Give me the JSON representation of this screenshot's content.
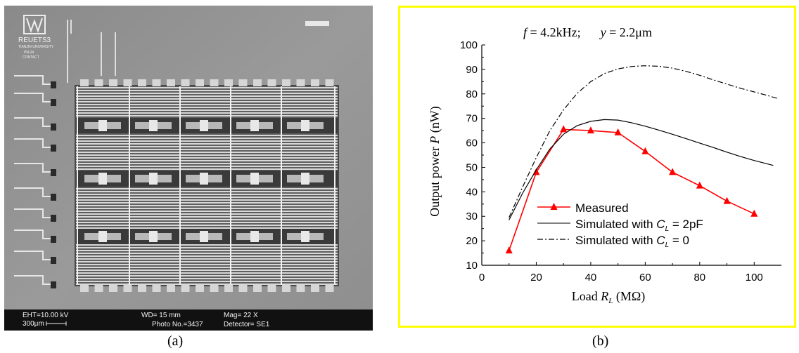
{
  "panel_a": {
    "caption": "(a)",
    "logo_text": [
      "REUETS3",
      "TIANJIN UNIVERSITY",
      "PN-24",
      "CONTACT"
    ],
    "info": {
      "eht": "EHT=10.00 kV",
      "scale": "300μm",
      "wd": "WD=  15 mm",
      "photo": "Photo No.=3437",
      "mag": "Mag=    22  X",
      "detector": "Detector= SE1"
    }
  },
  "panel_b": {
    "caption": "(b)"
  },
  "chart_data": {
    "type": "line",
    "annotation": {
      "f_symbol": "f",
      "f_value": " = 4.2kHz;",
      "y_symbol": "y",
      "y_value": " = 2.2μm"
    },
    "xlabel": {
      "prefix": "Load ",
      "symbol": "R",
      "sub": "L",
      "suffix": " (MΩ)"
    },
    "ylabel": {
      "prefix": "Output power ",
      "symbol": "P",
      "suffix": " (nW)"
    },
    "xlim": [
      0,
      110
    ],
    "ylim": [
      10,
      100
    ],
    "xticks": [
      0,
      20,
      40,
      60,
      80,
      100
    ],
    "yticks": [
      10,
      20,
      30,
      40,
      50,
      60,
      70,
      80,
      90,
      100
    ],
    "legend_position": "bottom-left",
    "series": [
      {
        "name": "Measured",
        "style": "red-triangle",
        "color": "#ff0000",
        "x": [
          10,
          20,
          30,
          40,
          50,
          60,
          70,
          80,
          90,
          100
        ],
        "y": [
          16,
          48,
          65.5,
          65,
          64.2,
          56.5,
          48,
          42.5,
          36.2,
          31
        ]
      },
      {
        "name": "Simulated with C_L = 2pF",
        "legend": {
          "prefix": "Simulated with ",
          "symbol": "C",
          "sub": "L",
          "suffix": " = 2pF"
        },
        "style": "solid",
        "color": "#000000",
        "x": [
          10,
          15,
          20,
          25,
          30,
          35,
          40,
          45,
          50,
          55,
          60,
          65,
          70,
          75,
          80,
          85,
          90,
          95,
          100,
          107
        ],
        "y": [
          28.5,
          39.5,
          49,
          57.5,
          63.5,
          67,
          68.8,
          69.5,
          69.3,
          68.2,
          66.8,
          65.2,
          63.5,
          61.7,
          59.9,
          58.1,
          56.2,
          54.4,
          52.8,
          50.8
        ]
      },
      {
        "name": "Simulated with C_L = 0",
        "legend": {
          "prefix": "Simulated with ",
          "symbol": "C",
          "sub": "L",
          "suffix": " = 0"
        },
        "style": "dashdot",
        "color": "#000000",
        "x": [
          10,
          15,
          20,
          25,
          30,
          35,
          40,
          45,
          50,
          55,
          60,
          65,
          70,
          75,
          80,
          85,
          90,
          95,
          100,
          105,
          109
        ],
        "y": [
          29.5,
          42,
          54,
          65,
          73.5,
          80.2,
          85,
          88.3,
          90.2,
          91.2,
          91.5,
          91.3,
          90.5,
          89.2,
          87.6,
          85.7,
          84,
          82.3,
          80.8,
          79.3,
          78
        ]
      }
    ]
  }
}
